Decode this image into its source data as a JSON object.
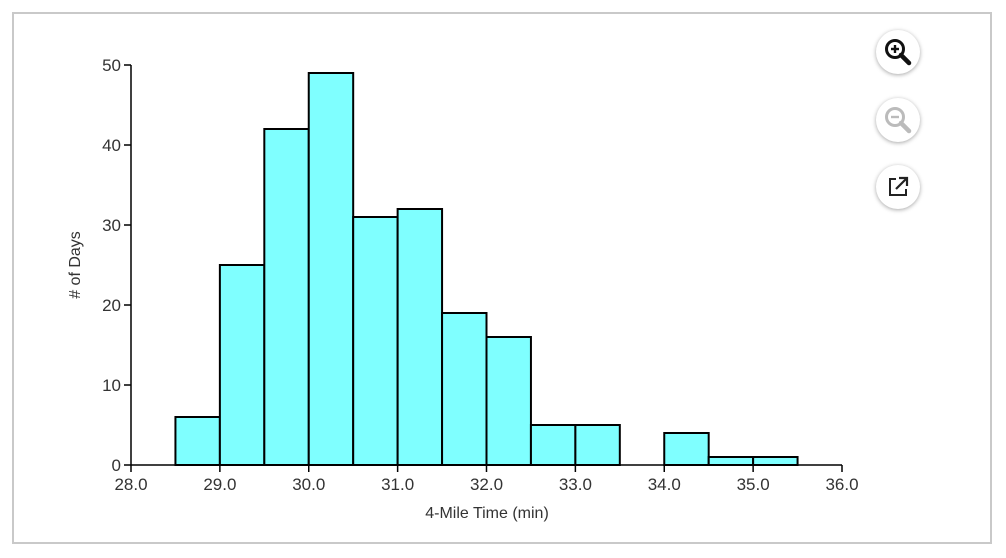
{
  "chart_data": {
    "type": "bar",
    "title": "",
    "xlabel": "4-Mile Time (min)",
    "ylabel": "# of Days",
    "bin_width": 0.5,
    "bins": [
      {
        "x0": 28.5,
        "x1": 29.0,
        "count": 6
      },
      {
        "x0": 29.0,
        "x1": 29.5,
        "count": 25
      },
      {
        "x0": 29.5,
        "x1": 30.0,
        "count": 42
      },
      {
        "x0": 30.0,
        "x1": 30.5,
        "count": 49
      },
      {
        "x0": 30.5,
        "x1": 31.0,
        "count": 31
      },
      {
        "x0": 31.0,
        "x1": 31.5,
        "count": 32
      },
      {
        "x0": 31.5,
        "x1": 32.0,
        "count": 19
      },
      {
        "x0": 32.0,
        "x1": 32.5,
        "count": 16
      },
      {
        "x0": 32.5,
        "x1": 33.0,
        "count": 5
      },
      {
        "x0": 33.0,
        "x1": 33.5,
        "count": 5
      },
      {
        "x0": 34.0,
        "x1": 34.5,
        "count": 4
      },
      {
        "x0": 34.5,
        "x1": 35.0,
        "count": 1
      },
      {
        "x0": 35.0,
        "x1": 35.5,
        "count": 1
      }
    ],
    "xlim": [
      28.0,
      36.0
    ],
    "ylim": [
      0,
      50
    ],
    "x_ticks": [
      "28.0",
      "29.0",
      "30.0",
      "31.0",
      "32.0",
      "33.0",
      "34.0",
      "35.0",
      "36.0"
    ],
    "y_ticks": [
      "0",
      "10",
      "20",
      "30",
      "40",
      "50"
    ],
    "bar_color": "#7fffff",
    "bar_edge_color": "#000000",
    "grid": false
  },
  "toolbar": {
    "zoom_in_icon": "zoom-in-icon",
    "zoom_out_icon": "zoom-out-icon",
    "open_external_icon": "open-external-icon"
  }
}
